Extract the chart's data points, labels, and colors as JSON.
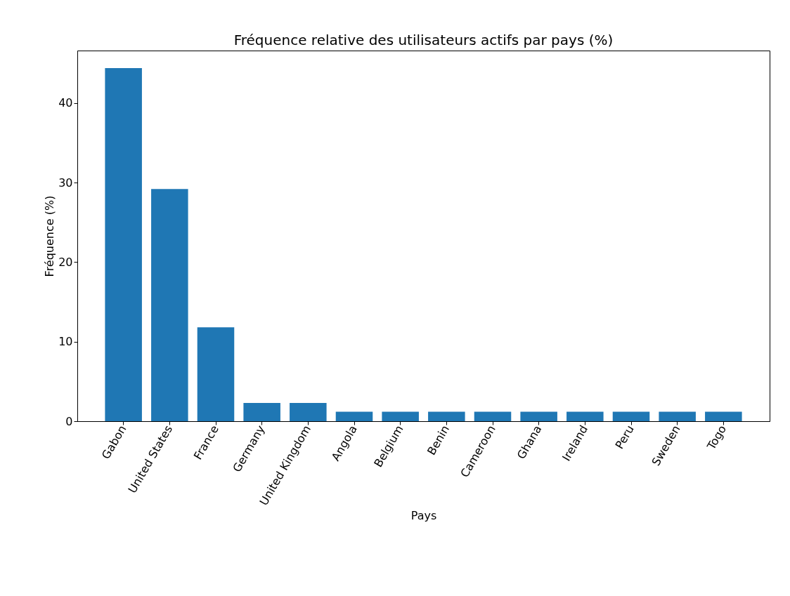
{
  "chart_data": {
    "type": "bar",
    "title": "Fréquence relative des utilisateurs actifs par pays (%)",
    "xlabel": "Pays",
    "ylabel": "Fréquence (%)",
    "categories": [
      "Gabon",
      "United States",
      "France",
      "Germany",
      "United Kingdom",
      "Angola",
      "Belgium",
      "Benin",
      "Cameroon",
      "Ghana",
      "Ireland",
      "Peru",
      "Sweden",
      "Togo"
    ],
    "values": [
      44.4,
      29.2,
      11.8,
      2.3,
      2.3,
      1.2,
      1.2,
      1.2,
      1.2,
      1.2,
      1.2,
      1.2,
      1.2,
      1.2
    ],
    "color": "#1f77b4",
    "ylim": [
      0,
      46.6
    ],
    "yticks": [
      0,
      10,
      20,
      30,
      40
    ],
    "grid": false
  }
}
